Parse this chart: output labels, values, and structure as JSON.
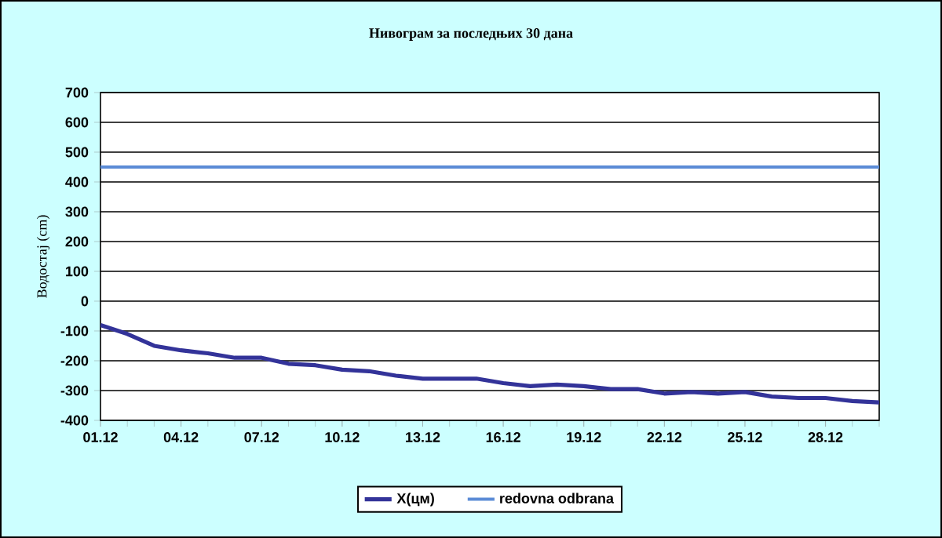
{
  "chart_data": {
    "type": "line",
    "title": "Нивограм за последњих 30 дана",
    "ylabel": "Водостај (cm)",
    "categories": [
      "01.12",
      null,
      null,
      "04.12",
      null,
      null,
      "07.12",
      null,
      null,
      "10.12",
      null,
      null,
      "13.12",
      null,
      null,
      "16.12",
      null,
      null,
      "19.12",
      null,
      null,
      "22.12",
      null,
      null,
      "25.12",
      null,
      null,
      "28.12",
      null,
      null
    ],
    "series": [
      {
        "name": "X(цм)",
        "color": "#333399",
        "values": [
          -80,
          -110,
          -150,
          -165,
          -175,
          -190,
          -190,
          -210,
          -215,
          -230,
          -235,
          -250,
          -260,
          -260,
          -260,
          -275,
          -285,
          -280,
          -285,
          -295,
          -295,
          -310,
          -305,
          -310,
          -305,
          -320,
          -325,
          -325,
          -335,
          -340
        ]
      },
      {
        "name": "redovna odbrana",
        "color": "#5b8bd6",
        "values": [
          450,
          450,
          450,
          450,
          450,
          450,
          450,
          450,
          450,
          450,
          450,
          450,
          450,
          450,
          450,
          450,
          450,
          450,
          450,
          450,
          450,
          450,
          450,
          450,
          450,
          450,
          450,
          450,
          450,
          450
        ]
      }
    ],
    "ylim": [
      -400,
      700
    ],
    "yticks": [
      -400,
      -300,
      -200,
      -100,
      0,
      100,
      200,
      300,
      400,
      500,
      600,
      700
    ],
    "grid": "y",
    "legend": "bottom",
    "marker": "none",
    "line_style": "solid"
  }
}
